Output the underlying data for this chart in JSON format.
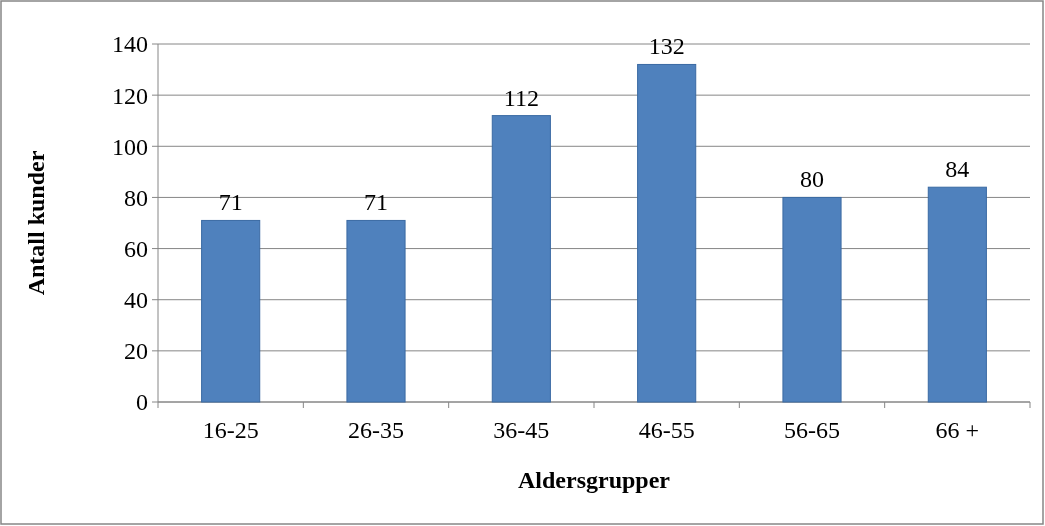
{
  "chart_data": {
    "type": "bar",
    "xlabel": "Aldersgrupper",
    "ylabel": "Antall kunder",
    "categories": [
      "16-25",
      "26-35",
      "36-45",
      "46-55",
      "56-65",
      "66 +"
    ],
    "values": [
      71,
      71,
      112,
      132,
      80,
      84
    ],
    "color": "#4f81bd",
    "ylim": [
      0,
      140
    ],
    "yticks": [
      0,
      20,
      40,
      60,
      80,
      100,
      120,
      140
    ],
    "grid": "y",
    "data_labels": true
  }
}
